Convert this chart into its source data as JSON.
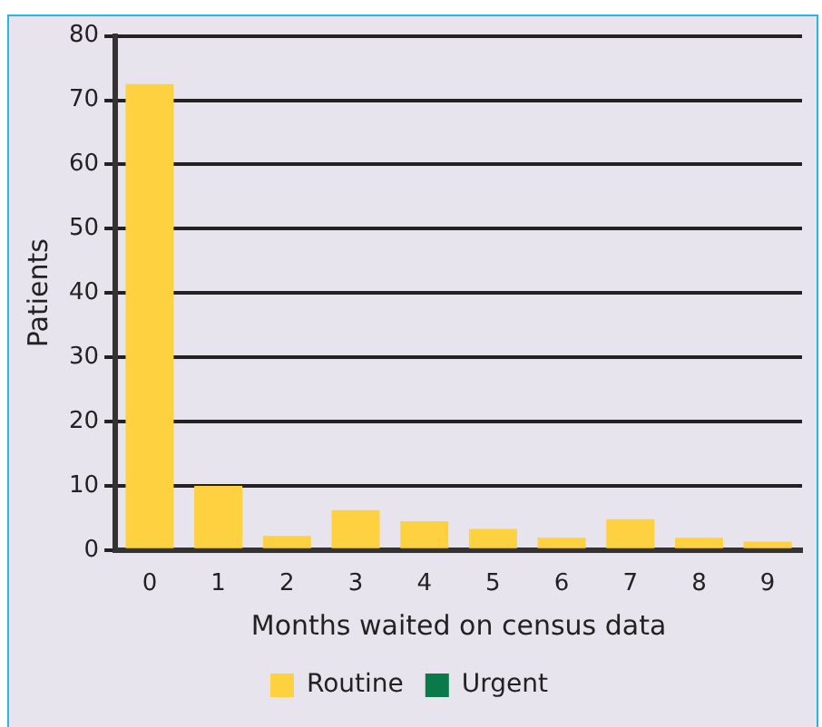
{
  "chart_data": {
    "type": "bar",
    "xlabel": "Months waited on census data",
    "ylabel": "Patients",
    "categories": [
      "0",
      "1",
      "2",
      "3",
      "4",
      "5",
      "6",
      "7",
      "8",
      "9"
    ],
    "series": [
      {
        "name": "Routine",
        "color": "#fed141",
        "values": [
          72.5,
          10,
          2.2,
          6.2,
          4.5,
          3.3,
          1.9,
          4.8,
          1.9,
          1.3
        ]
      },
      {
        "name": "Urgent",
        "color": "#0b7a4b",
        "values": [
          0,
          0,
          0,
          0,
          0,
          0,
          0,
          0,
          0,
          0
        ]
      }
    ],
    "stacked": true,
    "ylim": [
      0,
      80
    ],
    "yticks": [
      0,
      10,
      20,
      30,
      40,
      50,
      60,
      70,
      80
    ],
    "grid": "y",
    "legend": "bottom"
  }
}
